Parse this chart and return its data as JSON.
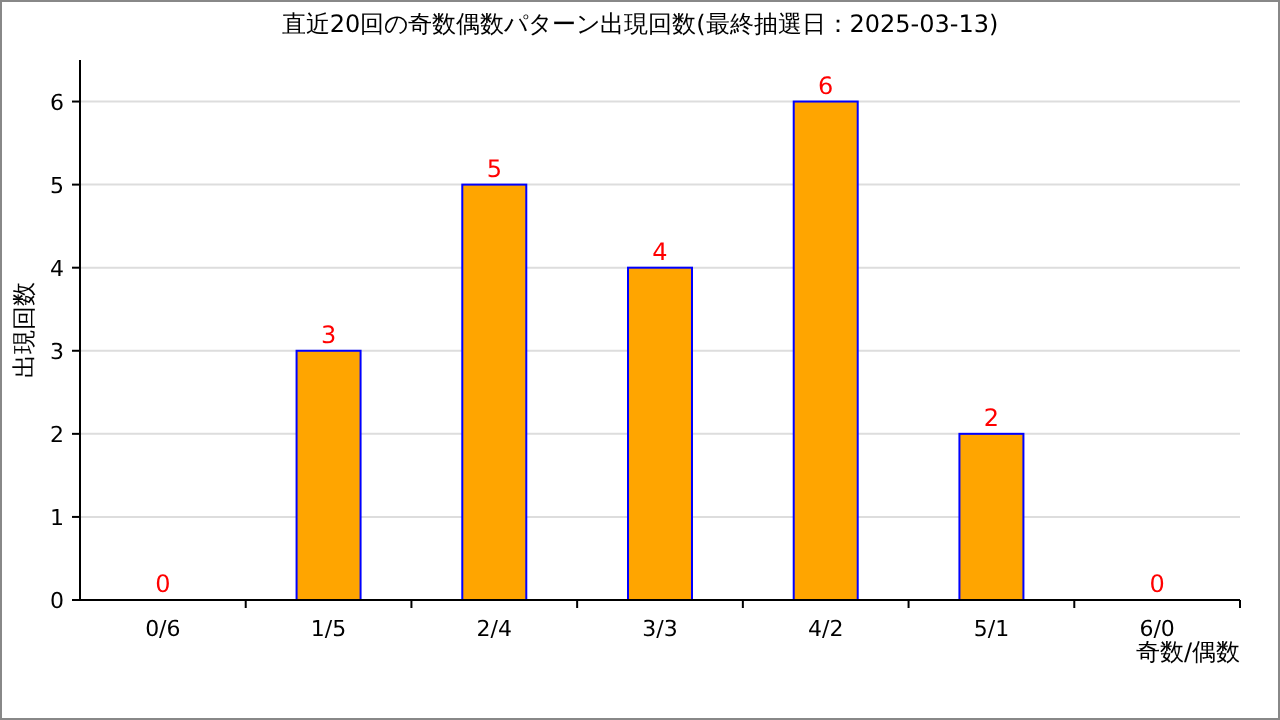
{
  "chart_data": {
    "type": "bar",
    "title": "直近20回の奇数偶数パターン出現回数(最終抽選日：2025-03-13)",
    "xlabel": "奇数/偶数",
    "ylabel": "出現回数",
    "categories": [
      "0/6",
      "1/5",
      "2/4",
      "3/3",
      "4/2",
      "5/1",
      "6/0"
    ],
    "values": [
      0,
      3,
      5,
      4,
      6,
      2,
      0
    ],
    "color": "#ffa500",
    "ylim": [
      0,
      6.5
    ],
    "yticks": [
      0,
      1,
      2,
      3,
      4,
      5,
      6
    ],
    "grid": "y",
    "data_labels": true
  }
}
